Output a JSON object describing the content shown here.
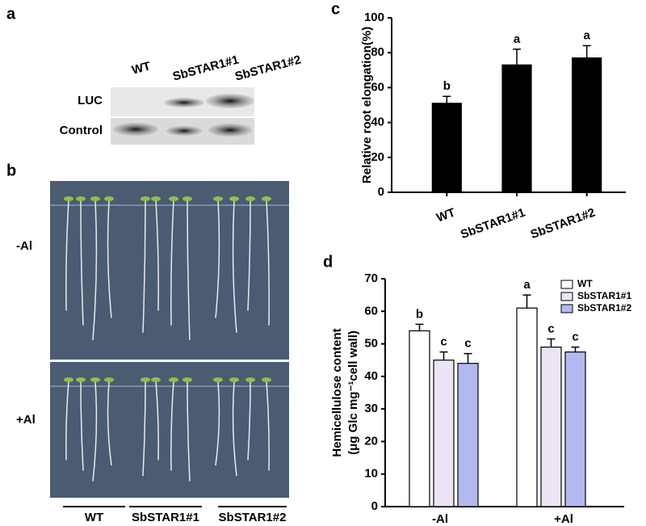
{
  "panel_a": {
    "label": "a",
    "lanes": [
      "WT",
      "SbSTAR1#1",
      "SbSTAR1#2"
    ],
    "rows": [
      "LUC",
      "Control"
    ]
  },
  "panel_b": {
    "label": "b",
    "conditions": [
      "-Al",
      "+Al"
    ],
    "genotypes": [
      "WT",
      "SbSTAR1#1",
      "SbSTAR1#2"
    ]
  },
  "chart_data": [
    {
      "type": "bar",
      "panel": "c",
      "ylabel": "Relative root elongation(%)",
      "categories": [
        "WT",
        "SbSTAR1#1",
        "SbSTAR1#2"
      ],
      "values": [
        51,
        73,
        77
      ],
      "errors": [
        4,
        9,
        7
      ],
      "letters": [
        "b",
        "a",
        "a"
      ],
      "color": "#000000",
      "ylim": [
        0,
        100
      ],
      "yticks": [
        0,
        20,
        40,
        60,
        80,
        100
      ]
    },
    {
      "type": "grouped_bar",
      "panel": "d",
      "ylabel": [
        "Hemicellulose content",
        "(μg Glc mg⁻¹cell wall)"
      ],
      "categories": [
        "-Al",
        "+Al"
      ],
      "series": [
        {
          "name": "WT",
          "color": "#ffffff",
          "values": [
            54,
            61
          ],
          "errors": [
            2,
            4
          ],
          "letters": [
            "b",
            "a"
          ]
        },
        {
          "name": "SbSTAR1#1",
          "color": "#ece4f5",
          "values": [
            45,
            49
          ],
          "errors": [
            2.5,
            2.5
          ],
          "letters": [
            "c",
            "c"
          ]
        },
        {
          "name": "SbSTAR1#2",
          "color": "#b4b8f0",
          "values": [
            44,
            47.5
          ],
          "errors": [
            3,
            1.5
          ],
          "letters": [
            "c",
            "c"
          ]
        }
      ],
      "ylim": [
        0,
        70
      ],
      "yticks": [
        0,
        10,
        20,
        30,
        40,
        50,
        60,
        70
      ],
      "legend": "upper right"
    }
  ]
}
